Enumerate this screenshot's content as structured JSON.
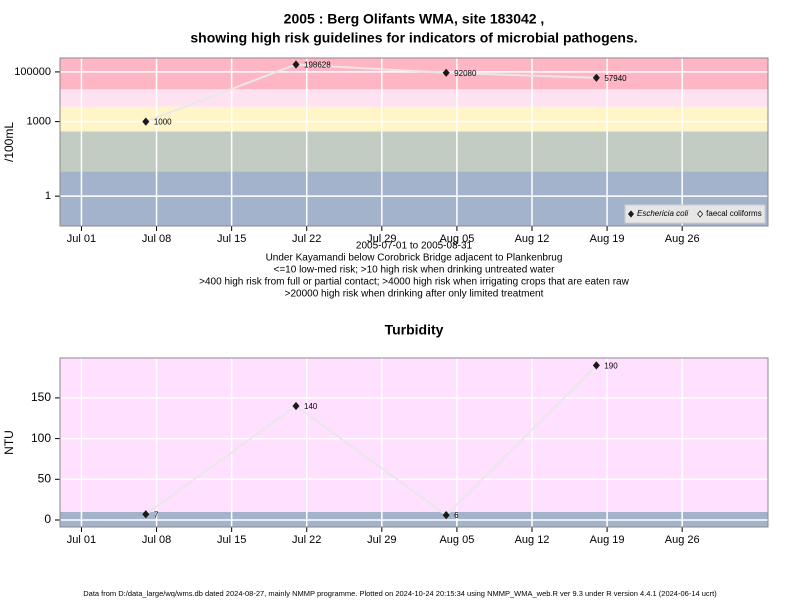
{
  "chart_data": [
    {
      "type": "line",
      "title": [
        "2005 : Berg Olifants WMA, site 183042 ,",
        "showing high risk guidelines for indicators of microbial pathogens."
      ],
      "subtitle": [
        "2005-07-01 to 2005-08-31",
        "Under Kayamandi below Corobrick Bridge adjacent to Plankenbrug",
        "<=10 low-med risk; >10 high risk when drinking untreated water",
        ">400 high risk from full or partial contact; >4000 high risk when irrigating crops that are eaten raw",
        ">20000 high risk when drinking after only limited treatment"
      ],
      "ylabel": "/100mL",
      "log_scale": true,
      "x": [
        "Jul 07",
        "Jul 21",
        "Aug 04",
        "Aug 18"
      ],
      "series": [
        {
          "name": "Eschericia coli",
          "color": "#1a1a1a",
          "values": [
            1000,
            198628,
            92080,
            57940
          ]
        },
        {
          "name": "faecal coliforms",
          "color": "#ffffff",
          "values": [
            null,
            null,
            null,
            null
          ]
        }
      ],
      "line_color": "#e8e8e8",
      "xlim": [
        "Jun 29",
        "Sep 03"
      ],
      "xticks": [
        "Jul 01",
        "Jul 08",
        "Jul 15",
        "Jul 22",
        "Jul 29",
        "Aug 05",
        "Aug 12",
        "Aug 19",
        "Aug 26"
      ],
      "ylim": [
        0.063,
        363000
      ],
      "yticks": [
        1,
        1000,
        100000
      ],
      "band_thresholds": [
        10,
        400,
        4000,
        20000
      ],
      "band_colors": [
        "#a3b3cc",
        "#c2ccc2",
        "#fff5c8",
        "#ffe2f2",
        "#ffb6c4"
      ],
      "grid": true,
      "legend": "bottom-right"
    },
    {
      "type": "line",
      "title": [
        "Turbidity"
      ],
      "ylabel": "NTU",
      "log_scale": false,
      "x": [
        "Jul 07",
        "Jul 21",
        "Aug 04",
        "Aug 18"
      ],
      "series": [
        {
          "color": "#1a1a1a",
          "values": [
            7,
            140,
            6,
            190
          ]
        }
      ],
      "line_color": "#e8e8e8",
      "xlim": [
        "Jun 29",
        "Sep 03"
      ],
      "xticks": [
        "Jul 01",
        "Jul 08",
        "Jul 15",
        "Jul 22",
        "Jul 29",
        "Aug 05",
        "Aug 12",
        "Aug 19",
        "Aug 26"
      ],
      "ylim": [
        -8.6,
        199
      ],
      "yticks": [
        0,
        50,
        100,
        150
      ],
      "band_thresholds": [
        10
      ],
      "band_colors": [
        "#a3b3cc",
        "#ffe0ff"
      ],
      "grid": true
    }
  ],
  "footer": "Data from D:/data_large/wq/wms.db dated 2024-08-27, mainly NMMP programme. Plotted on 2024-10-24 20:15:34 using NMMP_WMA_web.R ver 9.3 under R version 4.4.1 (2024-06-14 ucrt)"
}
